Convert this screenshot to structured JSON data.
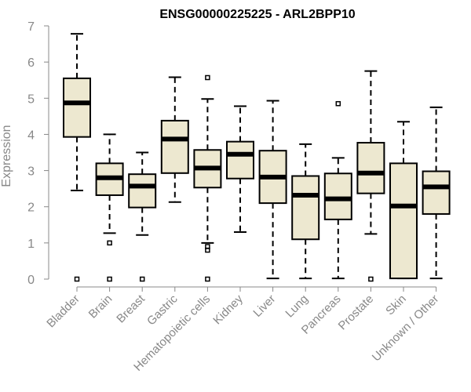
{
  "chart_data": {
    "type": "boxplot",
    "title": "ENSG00000225225 - ARL2BPP10",
    "xlabel": "",
    "ylabel": "Expression",
    "ylim": [
      0,
      7
    ],
    "yticks": [
      0,
      1,
      2,
      3,
      4,
      5,
      6,
      7
    ],
    "box_color": "#ede8d0",
    "categories": [
      "Bladder",
      "Brain",
      "Breast",
      "Gastric",
      "Hematopoietic cells",
      "Kidney",
      "Liver",
      "Lung",
      "Pancreas",
      "Prostate",
      "Skin",
      "Unknown / Other"
    ],
    "series": [
      {
        "name": "Bladder",
        "whisker_low": 2.45,
        "q1": 3.93,
        "median": 4.87,
        "q3": 5.55,
        "whisker_high": 6.78,
        "outliers": [
          0
        ]
      },
      {
        "name": "Brain",
        "whisker_low": 1.27,
        "q1": 2.32,
        "median": 2.8,
        "q3": 3.2,
        "whisker_high": 4.0,
        "outliers": [
          1.0,
          0
        ]
      },
      {
        "name": "Breast",
        "whisker_low": 1.22,
        "q1": 1.98,
        "median": 2.57,
        "q3": 2.9,
        "whisker_high": 3.5,
        "outliers": [
          0
        ]
      },
      {
        "name": "Gastric",
        "whisker_low": 2.13,
        "q1": 2.93,
        "median": 3.87,
        "q3": 4.38,
        "whisker_high": 5.58,
        "outliers": []
      },
      {
        "name": "Hematopoietic cells",
        "whisker_low": 1.0,
        "q1": 2.53,
        "median": 3.07,
        "q3": 3.57,
        "whisker_high": 4.98,
        "outliers": [
          5.57,
          0.9,
          0.8,
          0
        ]
      },
      {
        "name": "Kidney",
        "whisker_low": 1.3,
        "q1": 2.78,
        "median": 3.45,
        "q3": 3.8,
        "whisker_high": 4.78,
        "outliers": []
      },
      {
        "name": "Liver",
        "whisker_low": 0.02,
        "q1": 2.1,
        "median": 2.82,
        "q3": 3.55,
        "whisker_high": 4.93,
        "outliers": []
      },
      {
        "name": "Lung",
        "whisker_low": 0.02,
        "q1": 1.1,
        "median": 2.32,
        "q3": 2.85,
        "whisker_high": 3.73,
        "outliers": []
      },
      {
        "name": "Pancreas",
        "whisker_low": 0.02,
        "q1": 1.65,
        "median": 2.22,
        "q3": 2.92,
        "whisker_high": 3.35,
        "outliers": [
          4.85
        ]
      },
      {
        "name": "Prostate",
        "whisker_low": 1.25,
        "q1": 2.37,
        "median": 2.93,
        "q3": 3.77,
        "whisker_high": 5.75,
        "outliers": [
          0
        ]
      },
      {
        "name": "Skin",
        "whisker_low": 0.02,
        "q1": 0.02,
        "median": 2.02,
        "q3": 3.2,
        "whisker_high": 4.35,
        "outliers": []
      },
      {
        "name": "Unknown / Other",
        "whisker_low": 0.02,
        "q1": 1.8,
        "median": 2.55,
        "q3": 2.98,
        "whisker_high": 4.75,
        "outliers": []
      }
    ]
  }
}
